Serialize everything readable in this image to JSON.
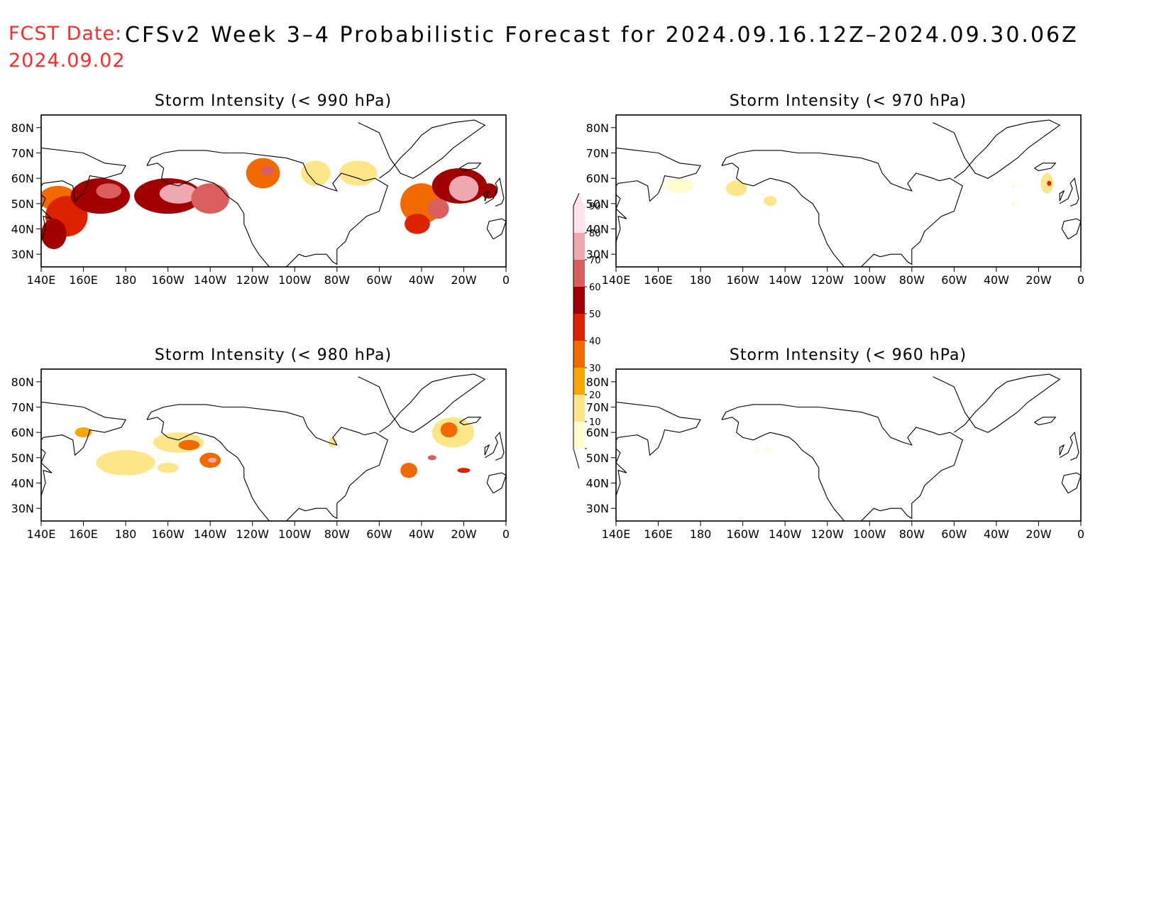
{
  "header": {
    "fcst_label": "FCST Date:",
    "fcst_date": "2024.09.02",
    "title": "CFSv2 Week 3–4 Probabilistic Forecast for 2024.09.16.12Z–2024.09.30.06Z"
  },
  "map_axes": {
    "lon_range": [
      140,
      360
    ],
    "lat_range": [
      25,
      85
    ],
    "lon_ticks": [
      {
        "lon": 140,
        "label": "140E"
      },
      {
        "lon": 160,
        "label": "160E"
      },
      {
        "lon": 180,
        "label": "180"
      },
      {
        "lon": 200,
        "label": "160W"
      },
      {
        "lon": 220,
        "label": "140W"
      },
      {
        "lon": 240,
        "label": "120W"
      },
      {
        "lon": 260,
        "label": "100W"
      },
      {
        "lon": 280,
        "label": "80W"
      },
      {
        "lon": 300,
        "label": "60W"
      },
      {
        "lon": 320,
        "label": "40W"
      },
      {
        "lon": 340,
        "label": "20W"
      },
      {
        "lon": 360,
        "label": "0"
      }
    ],
    "lat_ticks": [
      {
        "lat": 30,
        "label": "30N"
      },
      {
        "lat": 40,
        "label": "40N"
      },
      {
        "lat": 50,
        "label": "50N"
      },
      {
        "lat": 60,
        "label": "60N"
      },
      {
        "lat": 70,
        "label": "70N"
      },
      {
        "lat": 80,
        "label": "80N"
      }
    ]
  },
  "colorbar": {
    "levels": [
      10,
      20,
      30,
      40,
      50,
      60,
      70,
      80,
      90
    ],
    "colors": [
      "#fffdd0",
      "#fde68a",
      "#f7a800",
      "#f06a00",
      "#dd2200",
      "#a00000",
      "#d95f5f",
      "#f0a8b0",
      "#fde4e8"
    ],
    "labels": [
      "10",
      "20",
      "30",
      "40",
      "50",
      "60",
      "70",
      "80",
      "90"
    ]
  },
  "panels": [
    {
      "id": "p990",
      "title": "Storm Intensity (< 990 hPa)",
      "blobs": [
        {
          "lon": 148,
          "lat": 52,
          "rlon": 9,
          "rlat": 5,
          "level": 40
        },
        {
          "lon": 152,
          "lat": 45,
          "rlon": 10,
          "rlat": 8,
          "level": 50
        },
        {
          "lon": 146,
          "lat": 38,
          "rlon": 6,
          "rlat": 6,
          "level": 60
        },
        {
          "lon": 168,
          "lat": 53,
          "rlon": 14,
          "rlat": 7,
          "level": 60
        },
        {
          "lon": 172,
          "lat": 55,
          "rlon": 6,
          "rlat": 3,
          "level": 70
        },
        {
          "lon": 200,
          "lat": 53,
          "rlon": 16,
          "rlat": 7,
          "level": 60
        },
        {
          "lon": 205,
          "lat": 54,
          "rlon": 9,
          "rlat": 4,
          "level": 80
        },
        {
          "lon": 220,
          "lat": 52,
          "rlon": 9,
          "rlat": 6,
          "level": 70
        },
        {
          "lon": 245,
          "lat": 62,
          "rlon": 8,
          "rlat": 6,
          "level": 40
        },
        {
          "lon": 247,
          "lat": 63,
          "rlon": 3,
          "rlat": 2,
          "level": 70
        },
        {
          "lon": 270,
          "lat": 62,
          "rlon": 7,
          "rlat": 5,
          "level": 20
        },
        {
          "lon": 290,
          "lat": 62,
          "rlon": 9,
          "rlat": 5,
          "level": 20
        },
        {
          "lon": 320,
          "lat": 50,
          "rlon": 10,
          "rlat": 8,
          "level": 40
        },
        {
          "lon": 318,
          "lat": 42,
          "rlon": 6,
          "rlat": 4,
          "level": 50
        },
        {
          "lon": 338,
          "lat": 57,
          "rlon": 13,
          "rlat": 7,
          "level": 60
        },
        {
          "lon": 340,
          "lat": 56,
          "rlon": 7,
          "rlat": 5,
          "level": 80
        },
        {
          "lon": 328,
          "lat": 48,
          "rlon": 5,
          "rlat": 4,
          "level": 70
        },
        {
          "lon": 352,
          "lat": 55,
          "rlon": 4,
          "rlat": 3,
          "level": 60
        }
      ]
    },
    {
      "id": "p970",
      "title": "Storm Intensity (< 970 hPa)",
      "blobs": [
        {
          "lon": 170,
          "lat": 57,
          "rlon": 7,
          "rlat": 3,
          "level": 10
        },
        {
          "lon": 197,
          "lat": 56,
          "rlon": 5,
          "rlat": 3,
          "level": 20
        },
        {
          "lon": 213,
          "lat": 51,
          "rlon": 3,
          "rlat": 2,
          "level": 20
        },
        {
          "lon": 344,
          "lat": 58,
          "rlon": 3,
          "rlat": 4,
          "level": 20
        },
        {
          "lon": 345,
          "lat": 58,
          "rlon": 1,
          "rlat": 1,
          "level": 50
        },
        {
          "lon": 328,
          "lat": 57,
          "rlon": 1,
          "rlat": 1,
          "level": 10
        },
        {
          "lon": 328,
          "lat": 50,
          "rlon": 1,
          "rlat": 1,
          "level": 10
        }
      ]
    },
    {
      "id": "p980",
      "title": "Storm Intensity (< 980 hPa)",
      "blobs": [
        {
          "lon": 160,
          "lat": 60,
          "rlon": 4,
          "rlat": 2,
          "level": 30
        },
        {
          "lon": 180,
          "lat": 48,
          "rlon": 14,
          "rlat": 5,
          "level": 20
        },
        {
          "lon": 205,
          "lat": 56,
          "rlon": 12,
          "rlat": 4,
          "level": 20
        },
        {
          "lon": 210,
          "lat": 55,
          "rlon": 5,
          "rlat": 2,
          "level": 40
        },
        {
          "lon": 220,
          "lat": 49,
          "rlon": 5,
          "rlat": 3,
          "level": 40
        },
        {
          "lon": 221,
          "lat": 49,
          "rlon": 2,
          "rlat": 1,
          "level": 80
        },
        {
          "lon": 200,
          "lat": 46,
          "rlon": 5,
          "rlat": 2,
          "level": 20
        },
        {
          "lon": 278,
          "lat": 56,
          "rlon": 2,
          "rlat": 2,
          "level": 20
        },
        {
          "lon": 335,
          "lat": 60,
          "rlon": 10,
          "rlat": 6,
          "level": 20
        },
        {
          "lon": 333,
          "lat": 61,
          "rlon": 4,
          "rlat": 3,
          "level": 40
        },
        {
          "lon": 325,
          "lat": 50,
          "rlon": 2,
          "rlat": 1,
          "level": 70
        },
        {
          "lon": 314,
          "lat": 45,
          "rlon": 4,
          "rlat": 3,
          "level": 40
        },
        {
          "lon": 340,
          "lat": 45,
          "rlon": 3,
          "rlat": 1,
          "level": 50
        }
      ]
    },
    {
      "id": "p960",
      "title": "Storm Intensity (< 960 hPa)",
      "blobs": [
        {
          "lon": 212,
          "lat": 53,
          "rlon": 1,
          "rlat": 1,
          "level": 10
        },
        {
          "lon": 207,
          "lat": 53,
          "rlon": 1,
          "rlat": 1,
          "level": 10
        }
      ]
    }
  ],
  "coast": [
    [
      [
        140,
        35
      ],
      [
        142,
        40
      ],
      [
        141,
        45
      ],
      [
        145,
        44
      ],
      [
        140,
        48
      ],
      [
        142,
        52
      ],
      [
        138,
        55
      ],
      [
        141,
        58
      ],
      [
        150,
        59
      ],
      [
        155,
        57
      ],
      [
        156,
        51
      ],
      [
        160,
        54
      ],
      [
        162,
        58
      ],
      [
        163,
        61
      ],
      [
        170,
        60
      ],
      [
        178,
        62
      ],
      [
        180,
        65
      ],
      [
        170,
        66
      ],
      [
        160,
        70
      ],
      [
        140,
        72
      ],
      [
        140,
        85
      ]
    ],
    [
      [
        190,
        65
      ],
      [
        195,
        66
      ],
      [
        198,
        64
      ],
      [
        197,
        60
      ],
      [
        200,
        58
      ],
      [
        205,
        57
      ],
      [
        210,
        59
      ],
      [
        213,
        60
      ],
      [
        218,
        59
      ],
      [
        222,
        58
      ],
      [
        225,
        56
      ],
      [
        228,
        53
      ],
      [
        233,
        50
      ],
      [
        236,
        46
      ],
      [
        236,
        42
      ],
      [
        238,
        38
      ],
      [
        240,
        34
      ],
      [
        243,
        30
      ],
      [
        246,
        27
      ],
      [
        248,
        25
      ]
    ],
    [
      [
        256,
        25
      ],
      [
        262,
        30
      ],
      [
        265,
        29
      ],
      [
        270,
        30
      ],
      [
        275,
        30
      ],
      [
        278,
        27
      ],
      [
        280,
        26
      ],
      [
        280,
        32
      ],
      [
        284,
        35
      ],
      [
        286,
        39
      ],
      [
        290,
        42
      ],
      [
        294,
        45
      ],
      [
        300,
        47
      ],
      [
        302,
        52
      ],
      [
        304,
        57
      ],
      [
        298,
        60
      ],
      [
        293,
        59
      ],
      [
        290,
        60
      ],
      [
        282,
        62
      ],
      [
        278,
        58
      ],
      [
        280,
        55
      ],
      [
        276,
        56
      ],
      [
        270,
        58
      ],
      [
        266,
        62
      ],
      [
        264,
        66
      ],
      [
        256,
        68
      ],
      [
        246,
        69
      ],
      [
        236,
        70
      ],
      [
        226,
        70
      ],
      [
        218,
        71
      ],
      [
        205,
        71
      ],
      [
        198,
        70
      ],
      [
        192,
        68
      ],
      [
        190,
        65
      ]
    ],
    [
      [
        300,
        60
      ],
      [
        305,
        63
      ],
      [
        310,
        68
      ],
      [
        315,
        72
      ],
      [
        320,
        77
      ],
      [
        325,
        80
      ],
      [
        335,
        82
      ],
      [
        345,
        83
      ],
      [
        350,
        81
      ],
      [
        340,
        75
      ],
      [
        335,
        72
      ],
      [
        330,
        68
      ],
      [
        320,
        62
      ],
      [
        316,
        60
      ],
      [
        310,
        62
      ],
      [
        305,
        68
      ],
      [
        302,
        74
      ],
      [
        300,
        78
      ],
      [
        295,
        80
      ],
      [
        290,
        82
      ]
    ],
    [
      [
        338,
        64
      ],
      [
        342,
        66
      ],
      [
        348,
        66
      ],
      [
        346,
        64
      ],
      [
        340,
        63
      ],
      [
        338,
        64
      ]
    ],
    [
      [
        350,
        50
      ],
      [
        354,
        52
      ],
      [
        356,
        56
      ],
      [
        355,
        58
      ],
      [
        357,
        60
      ],
      [
        358,
        56
      ],
      [
        359,
        52
      ],
      [
        358,
        50
      ],
      [
        355,
        49
      ]
    ],
    [
      [
        354,
        36
      ],
      [
        358,
        38
      ],
      [
        360,
        43
      ],
      [
        358,
        44
      ],
      [
        352,
        43
      ],
      [
        351,
        40
      ],
      [
        354,
        36
      ]
    ],
    [
      [
        350,
        51
      ],
      [
        351,
        53
      ],
      [
        352,
        55
      ],
      [
        350,
        54
      ],
      [
        350,
        51
      ]
    ]
  ]
}
